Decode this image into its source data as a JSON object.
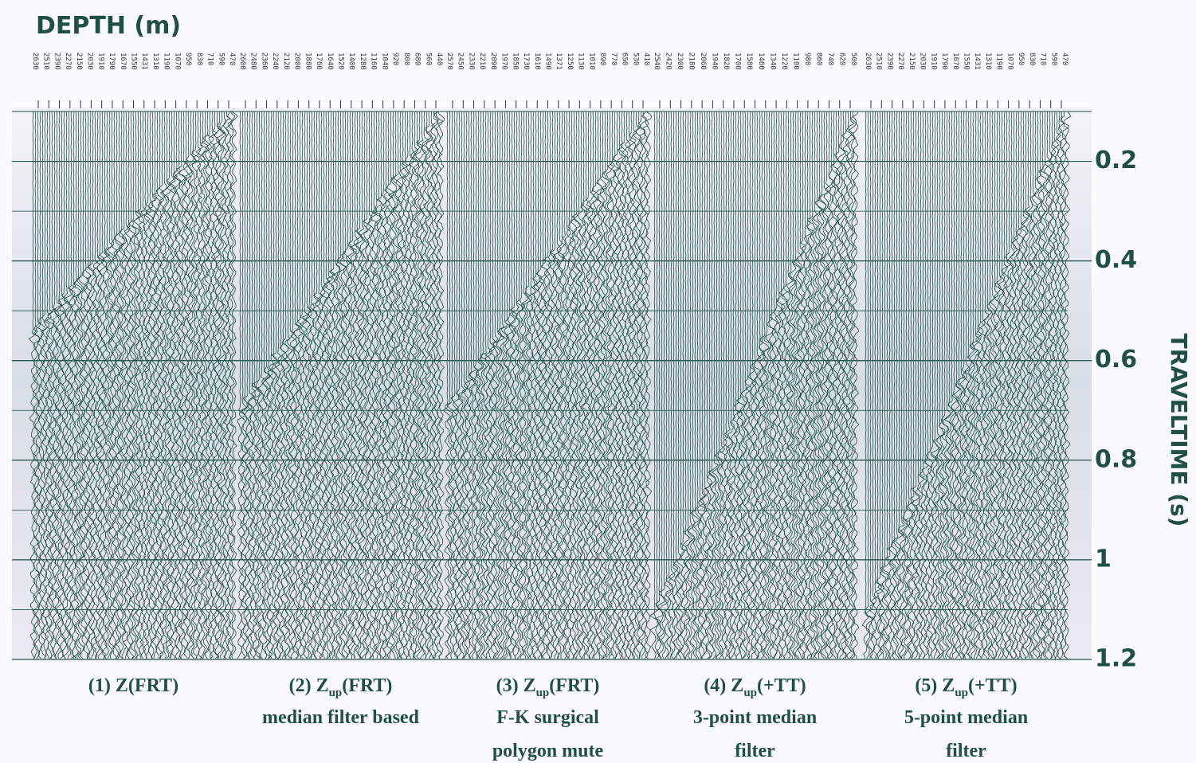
{
  "chart_data": {
    "type": "wiggle",
    "title": "DEPTH (m)",
    "ytitle": "TRAVELTIME (s)",
    "ylim": [
      0.1,
      1.2
    ],
    "yticks": [
      0.2,
      0.4,
      0.6,
      0.8,
      1.0,
      1.2
    ],
    "color": "#1f4f45",
    "panels": [
      {
        "depths": [
          2630,
          2510,
          2390,
          2270,
          2150,
          2030,
          1910,
          1790,
          1670,
          1550,
          1431,
          1310,
          1190,
          1070,
          950,
          830,
          710,
          590,
          470
        ],
        "heading": {
          "prefix": "(1)  Z(FRT)"
        }
      },
      {
        "depths": [
          2600,
          2480,
          2360,
          2240,
          2120,
          2000,
          1880,
          1760,
          1640,
          1520,
          1400,
          1280,
          1160,
          1040,
          920,
          800,
          680,
          560,
          440
        ],
        "heading": {
          "prefix": "(2)  Z",
          "sub": "up",
          "suffix": "(FRT)"
        },
        "lines": [
          "median filter based"
        ]
      },
      {
        "depths": [
          2570,
          2450,
          2330,
          2210,
          2090,
          1970,
          1850,
          1730,
          1610,
          1490,
          1371,
          1250,
          1130,
          1010,
          890,
          770,
          650,
          530,
          410
        ],
        "heading": {
          "prefix": "(3)  Z",
          "sub": "up",
          "suffix": "(FRT)"
        },
        "lines": [
          "F-K surgical",
          "polygon mute"
        ]
      },
      {
        "depths": [
          2540,
          2420,
          2300,
          2180,
          2060,
          1940,
          1820,
          1700,
          1580,
          1460,
          1340,
          1220,
          1100,
          980,
          860,
          740,
          620,
          500
        ],
        "heading": {
          "prefix": "(4)  Z",
          "sub": "up",
          "suffix": "(+TT)"
        },
        "lines": [
          "3-point median",
          "filter"
        ]
      },
      {
        "depths": [
          2630,
          2510,
          2390,
          2270,
          2150,
          2030,
          1910,
          1790,
          1670,
          1550,
          1431,
          1310,
          1190,
          1070,
          950,
          830,
          710,
          590,
          470
        ],
        "heading": {
          "prefix": "(5)  Z",
          "sub": "up",
          "suffix": "(+TT)"
        },
        "lines": [
          "5-point median",
          "filter"
        ]
      }
    ]
  }
}
